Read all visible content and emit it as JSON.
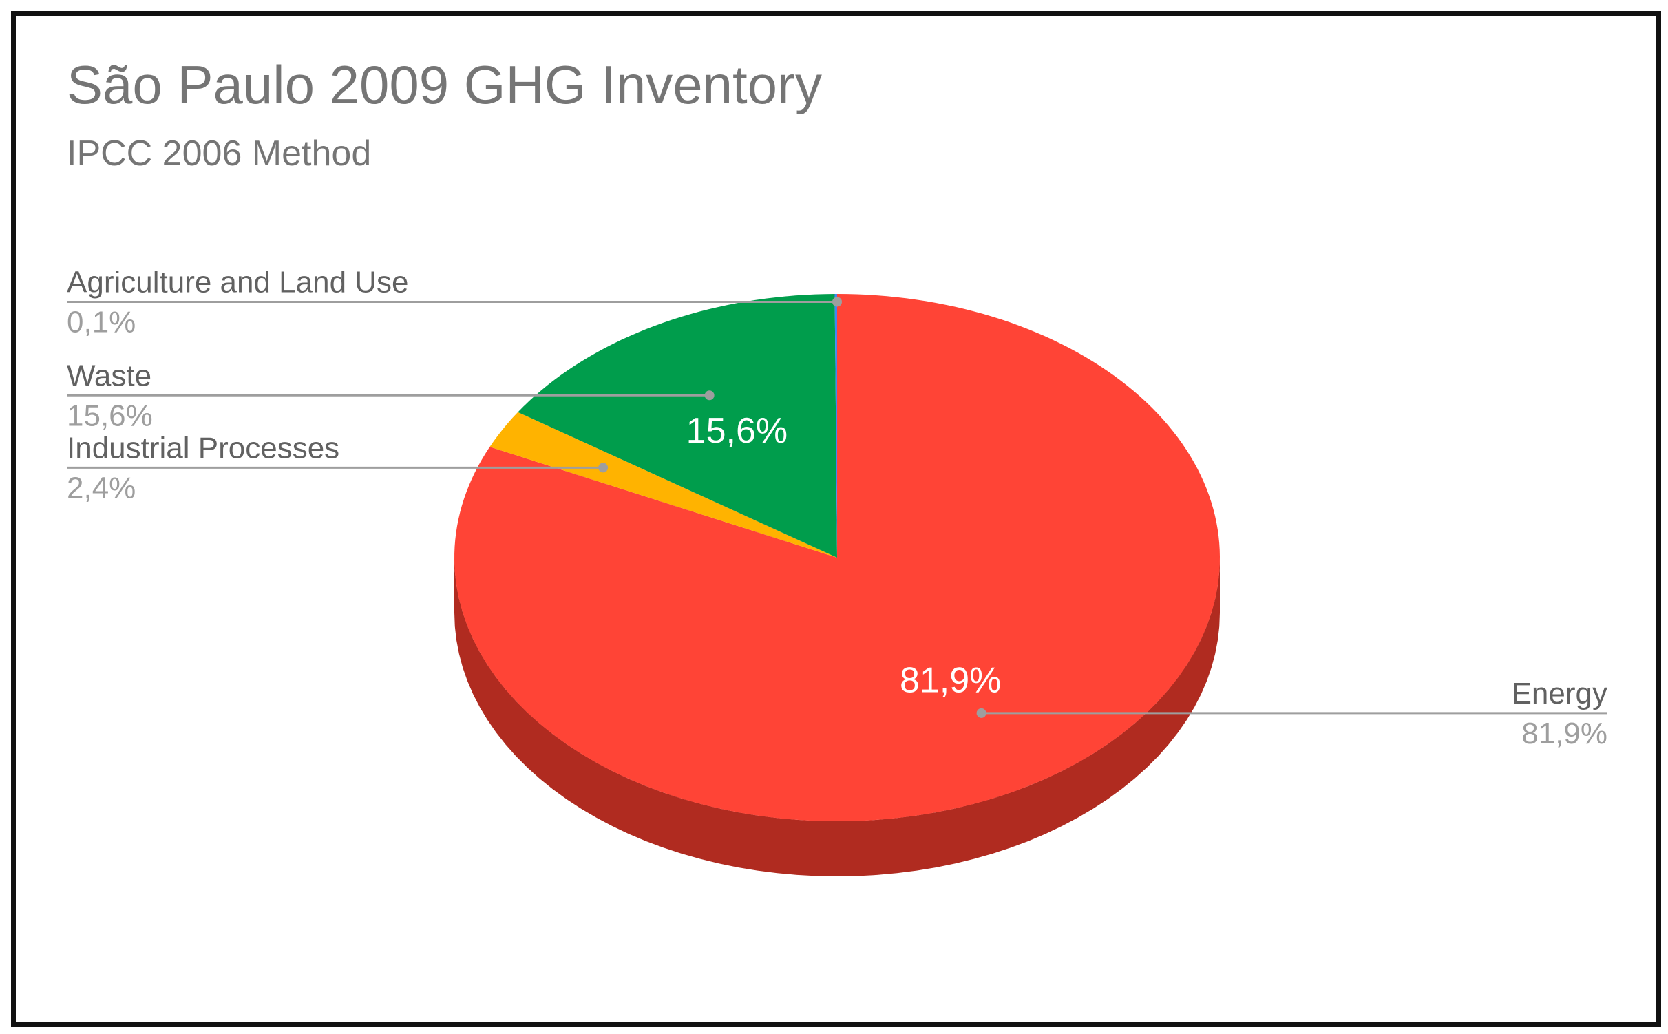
{
  "chart_data": {
    "type": "pie",
    "title": "São Paulo 2009 GHG Inventory",
    "subtitle": "IPCC 2006 Method",
    "three_d": true,
    "legend": "labeled callouts",
    "slices": [
      {
        "label": "Energy",
        "value": 81.9,
        "display": "81,9%",
        "color": "#FF4436",
        "side_color": "#B02B20",
        "inner_label": "81,9%"
      },
      {
        "label": "Industrial Processes",
        "value": 2.4,
        "display": "2,4%",
        "color": "#FFB300",
        "side_color": "#B37D00",
        "inner_label": ""
      },
      {
        "label": "Waste",
        "value": 15.6,
        "display": "15,6%",
        "color": "#009D4C",
        "side_color": "#006E35",
        "inner_label": "15,6%"
      },
      {
        "label": "Agriculture and Land Use",
        "value": 0.1,
        "display": "0,1%",
        "color": "#4285F4",
        "side_color": "#2E5DAB",
        "inner_label": ""
      }
    ]
  }
}
